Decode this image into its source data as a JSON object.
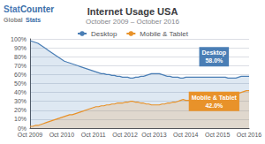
{
  "chart_data": {
    "type": "area",
    "title": "Internet Usage USA",
    "subtitle": "October 2009 – October 2016",
    "categories": [
      "Oct 2009",
      null,
      null,
      null,
      null,
      null,
      null,
      null,
      null,
      null,
      null,
      null,
      "Oct 2010",
      null,
      null,
      null,
      null,
      null,
      null,
      null,
      null,
      null,
      null,
      null,
      "Oct 2011",
      null,
      null,
      null,
      null,
      null,
      null,
      null,
      null,
      null,
      null,
      null,
      "Oct 2012",
      null,
      null,
      null,
      null,
      null,
      null,
      null,
      null,
      null,
      null,
      "Oct 2013",
      null,
      null,
      null,
      null,
      null,
      null,
      null,
      null,
      null,
      null,
      null,
      "Oct 2014",
      null,
      null,
      null,
      null,
      null,
      null,
      null,
      null,
      null,
      null,
      null,
      "Oct 2015",
      null,
      null,
      null,
      null,
      null,
      null,
      null,
      null,
      null,
      null,
      null,
      "Oct 2016"
    ],
    "series": [
      {
        "name": "Desktop",
        "color": "#4a7eb5",
        "values": [
          98,
          97,
          96,
          95,
          93,
          91,
          89,
          87,
          85,
          83,
          81,
          79,
          77,
          75,
          74,
          73,
          72,
          71,
          70,
          69,
          68,
          67,
          66,
          65,
          64,
          63,
          62,
          61,
          61,
          60,
          60,
          59,
          59,
          58,
          58,
          57,
          57,
          57,
          56,
          56,
          57,
          57,
          58,
          58,
          59,
          60,
          61,
          61,
          61,
          61,
          60,
          59,
          58,
          58,
          57,
          57,
          57,
          56,
          56,
          57,
          57,
          57,
          57,
          57,
          57,
          57,
          57,
          57,
          57,
          57,
          57,
          57,
          57,
          57,
          57,
          56,
          56,
          56,
          56,
          57,
          58,
          58,
          58,
          58
        ]
      },
      {
        "name": "Mobile & Tablet",
        "color": "#e8922a",
        "values": [
          2,
          2,
          3,
          3,
          4,
          5,
          6,
          7,
          8,
          9,
          10,
          11,
          12,
          13,
          14,
          15,
          15,
          16,
          17,
          18,
          19,
          20,
          21,
          22,
          23,
          24,
          24,
          25,
          25,
          26,
          26,
          27,
          27,
          28,
          28,
          28,
          29,
          29,
          30,
          30,
          29,
          29,
          28,
          28,
          27,
          27,
          26,
          26,
          26,
          26,
          27,
          27,
          28,
          28,
          29,
          29,
          30,
          31,
          32,
          31,
          31,
          31,
          31,
          31,
          31,
          31,
          31,
          31,
          31,
          32,
          33,
          34,
          35,
          36,
          37,
          38,
          39,
          40,
          40,
          39,
          40,
          41,
          42,
          42
        ]
      }
    ],
    "ylim": [
      0,
      100
    ],
    "yticks": [
      {
        "value": 0,
        "label": "0%"
      },
      {
        "value": 10,
        "label": "10%"
      },
      {
        "value": 20,
        "label": "20%"
      },
      {
        "value": 30,
        "label": "30%"
      },
      {
        "value": 40,
        "label": "40%"
      },
      {
        "value": 50,
        "label": "50%"
      },
      {
        "value": 60,
        "label": "60%"
      },
      {
        "value": 70,
        "label": "70%"
      },
      {
        "value": 80,
        "label": "80%"
      },
      {
        "value": 90,
        "label": "90%"
      },
      {
        "value": 100,
        "label": "100%"
      }
    ],
    "grid": true,
    "legend": "top",
    "annotations": [
      {
        "text": "Stat",
        "color": "#4a7ab5"
      },
      {
        "text": "Counter",
        "color": "#3a6ea8"
      },
      {
        "text": "Global",
        "color": "#888888"
      },
      {
        "text": "Stats",
        "color": "#3a6ea8"
      },
      {
        "text": "Desktop\n58.0%",
        "color": "#4a7eb5"
      },
      {
        "text": "Mobile & Tablet\n42.0%",
        "color": "#e8922a"
      }
    ]
  }
}
